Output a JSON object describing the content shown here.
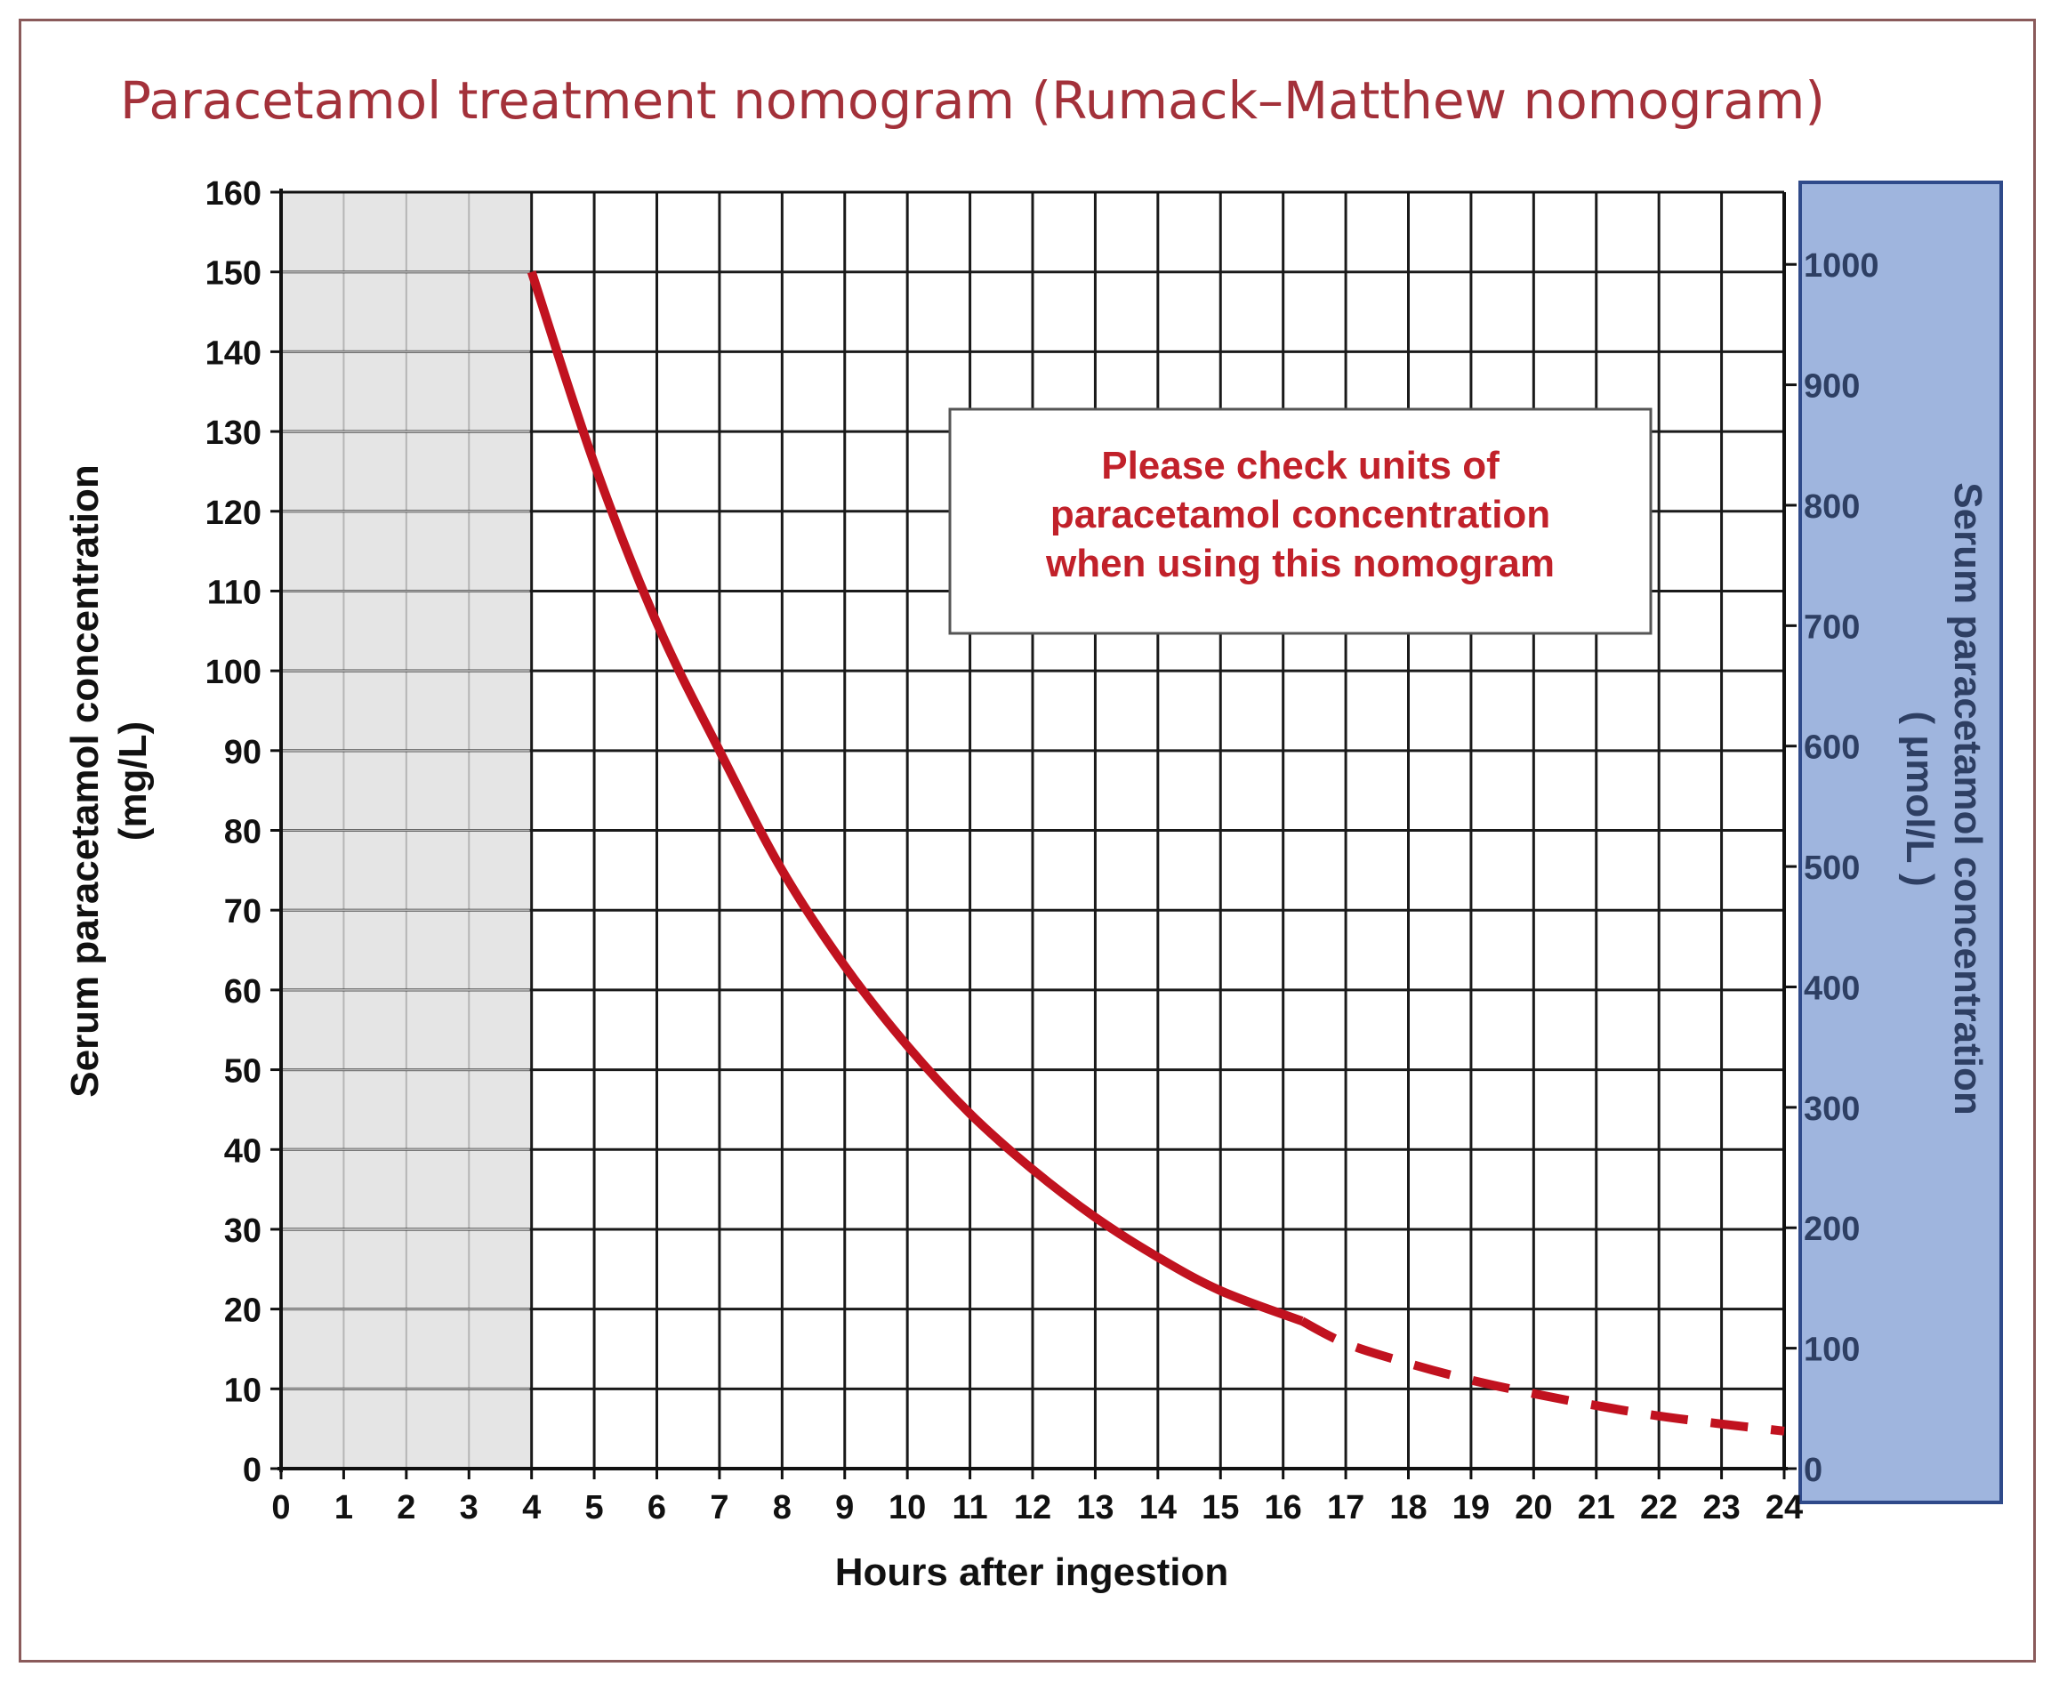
{
  "chart_data": {
    "type": "line",
    "title": "Paracetamol treatment nomogram (Rumack–Matthew nomogram)",
    "xlabel": "Hours after ingestion",
    "ylabel_left": [
      "Serum paracetamol concentration",
      "(mg/L)"
    ],
    "ylabel_right": [
      "Serum paracetamol concentration",
      "( μmol/L )"
    ],
    "xlim": [
      0,
      24
    ],
    "ylim_left": [
      0,
      160
    ],
    "ylim_right": [
      0,
      1060
    ],
    "x_ticks": [
      "0",
      "1",
      "2",
      "3",
      "4",
      "5",
      "6",
      "7",
      "8",
      "9",
      "10",
      "11",
      "12",
      "13",
      "14",
      "15",
      "16",
      "17",
      "18",
      "19",
      "20",
      "21",
      "22",
      "23",
      "24"
    ],
    "y_ticks_left": [
      "0",
      "10",
      "20",
      "30",
      "40",
      "50",
      "60",
      "70",
      "80",
      "90",
      "100",
      "110",
      "120",
      "130",
      "140",
      "150",
      "160"
    ],
    "y_ticks_right": [
      "0",
      "100",
      "200",
      "300",
      "400",
      "500",
      "600",
      "700",
      "800",
      "900",
      "1000"
    ],
    "shaded_region_x": [
      0,
      4
    ],
    "grid": true,
    "note": [
      "Please check units of",
      "paracetamol concentration",
      "when using this nomogram"
    ],
    "series": [
      {
        "style": "solid",
        "color": "#c1121f",
        "x": [
          4,
          5,
          6,
          7,
          8,
          9,
          10,
          11,
          12,
          13,
          14,
          15,
          16.3
        ],
        "y": [
          150,
          126,
          106,
          90,
          75,
          63,
          53,
          44.5,
          37.5,
          31.5,
          26.5,
          22.3,
          18.5
        ]
      },
      {
        "style": "dashed",
        "color": "#c1121f",
        "x": [
          16.3,
          17,
          18,
          19,
          20,
          21,
          22,
          23,
          24
        ],
        "y": [
          18.5,
          15.7,
          13.2,
          11.1,
          9.4,
          7.9,
          6.6,
          5.6,
          4.7
        ]
      }
    ]
  },
  "colors": {
    "title": "#a3313a",
    "curve": "#c1121f",
    "shade": "#e5e5e5",
    "right_axis_panel": "#9fb5de",
    "right_axis_border": "#2f4a8a",
    "grid": "#1a1a1a"
  }
}
